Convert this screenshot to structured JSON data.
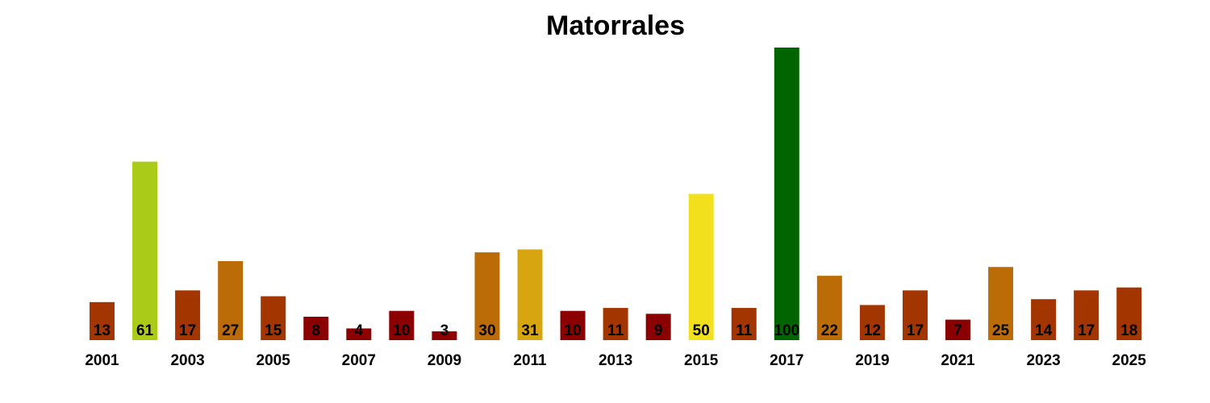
{
  "chart_data": {
    "type": "bar",
    "title": "Matorrales",
    "xlabel": "",
    "ylabel": "",
    "ylim": [
      0,
      100
    ],
    "grid": false,
    "legend": "none",
    "categories": [
      "2001",
      "2002",
      "2003",
      "2004",
      "2005",
      "2006",
      "2007",
      "2008",
      "2009",
      "2010",
      "2011",
      "2012",
      "2013",
      "2014",
      "2015",
      "2016",
      "2017",
      "2018",
      "2019",
      "2020",
      "2021",
      "2022",
      "2023",
      "2024",
      "2025"
    ],
    "tick_labels": [
      "2001",
      "2003",
      "2005",
      "2007",
      "2009",
      "2011",
      "2013",
      "2015",
      "2017",
      "2019",
      "2021",
      "2023",
      "2025"
    ],
    "values": [
      13,
      61,
      17,
      27,
      15,
      8,
      4,
      10,
      3,
      30,
      31,
      10,
      11,
      9,
      50,
      11,
      100,
      22,
      12,
      17,
      7,
      25,
      14,
      17,
      18
    ],
    "colors": [
      "#A33500",
      "#AACB18",
      "#A33500",
      "#BC6C07",
      "#A33500",
      "#8B0000",
      "#8B0000",
      "#8B0000",
      "#8B0000",
      "#BC6C07",
      "#D6A50F",
      "#8B0000",
      "#A33500",
      "#8B0000",
      "#F1E01B",
      "#A33500",
      "#006400",
      "#BC6C07",
      "#A33500",
      "#A33500",
      "#8B0000",
      "#BC6C07",
      "#A33500",
      "#A33500",
      "#A33500"
    ]
  }
}
